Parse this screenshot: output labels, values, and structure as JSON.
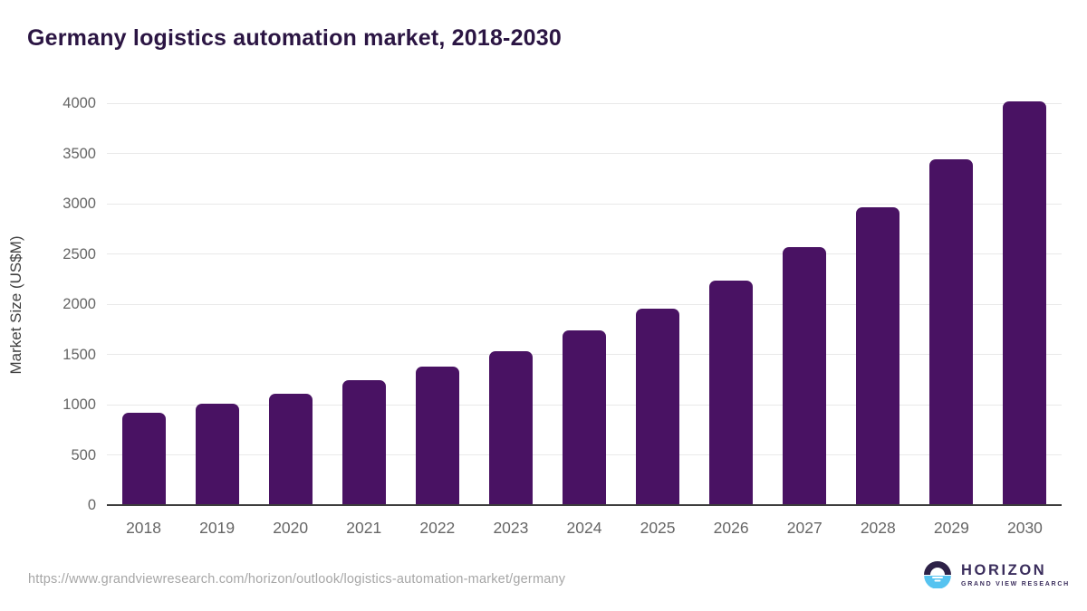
{
  "chart_data": {
    "type": "bar",
    "title": "Germany logistics automation market, 2018-2030",
    "xlabel": "",
    "ylabel": "Market Size (US$M)",
    "categories": [
      "2018",
      "2019",
      "2020",
      "2021",
      "2022",
      "2023",
      "2024",
      "2025",
      "2026",
      "2027",
      "2028",
      "2029",
      "2030"
    ],
    "values": [
      920,
      1010,
      1110,
      1240,
      1375,
      1535,
      1740,
      1955,
      2235,
      2565,
      2960,
      3440,
      4020
    ],
    "ylim": [
      0,
      4000
    ],
    "ytick_step": 500,
    "grid": true,
    "legend_position": "none",
    "bar_color": "#491263"
  },
  "footer": {
    "source_url": "https://www.grandviewresearch.com/horizon/outlook/logistics-automation-market/germany",
    "logo": {
      "name": "HORIZON",
      "subtitle": "GRAND VIEW RESEARCH",
      "icon": "horizon-sun-over-water-icon"
    }
  },
  "colors": {
    "title": "#2b1543",
    "bar": "#491263",
    "grid": "#e9e9e9",
    "axis": "#3d3d3d",
    "tick_label": "#666666",
    "y_axis_title": "#404040",
    "url": "#a6a6a6",
    "logo_navy": "#2d2147",
    "logo_blue": "#56c3f0",
    "logo_text": "#3a2d5c"
  }
}
